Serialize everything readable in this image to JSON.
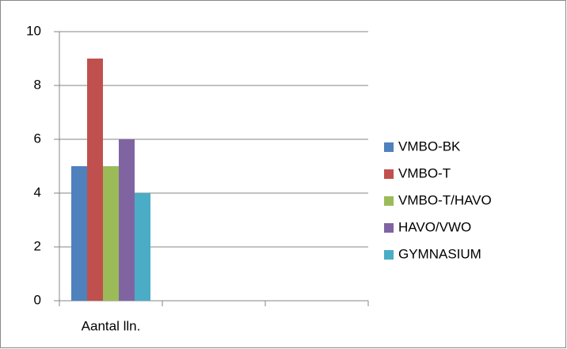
{
  "chart_data": {
    "type": "bar",
    "categories": [
      "Aantal lln.",
      null,
      null
    ],
    "series": [
      {
        "name": "VMBO-BK",
        "color": "#4f81bd",
        "values": [
          5,
          null,
          null
        ]
      },
      {
        "name": "VMBO-T",
        "color": "#c0504d",
        "values": [
          9,
          null,
          null
        ]
      },
      {
        "name": "VMBO-T/HAVO",
        "color": "#9bbb59",
        "values": [
          5,
          null,
          null
        ]
      },
      {
        "name": "HAVO/VWO",
        "color": "#8064a2",
        "values": [
          6,
          null,
          null
        ]
      },
      {
        "name": "GYMNASIUM",
        "color": "#4bacc6",
        "values": [
          4,
          null,
          null
        ]
      }
    ],
    "ylim": [
      0,
      10
    ],
    "yticks": [
      0,
      2,
      4,
      6,
      8,
      10
    ],
    "grid": true,
    "legend": "right"
  }
}
